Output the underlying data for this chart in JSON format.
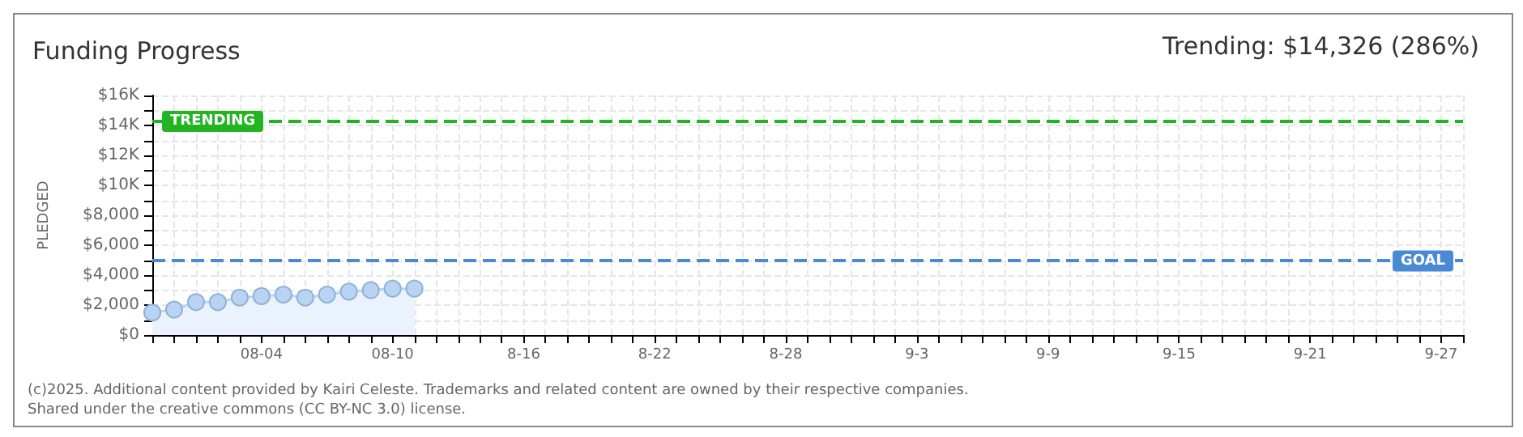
{
  "chart_data": {
    "type": "area",
    "title": "Funding Progress",
    "subtitle": "Trending: $14,326 (286%)",
    "ylabel": "PLEDGED",
    "categories": [
      null,
      null,
      null,
      null,
      null,
      "08-04",
      null,
      null,
      null,
      null,
      null,
      "08-10",
      null,
      null,
      null,
      null,
      null,
      "8-16",
      null,
      null,
      null,
      null,
      null,
      "8-22",
      null,
      null,
      null,
      null,
      null,
      "8-28",
      null,
      null,
      null,
      null,
      null,
      "9-3",
      null,
      null,
      null,
      null,
      null,
      "9-9",
      null,
      null,
      null,
      null,
      null,
      "9-15",
      null,
      null,
      null,
      null,
      null,
      "9-21",
      null,
      null,
      null,
      null,
      null,
      "9-27",
      null
    ],
    "series": [
      {
        "color": "#b8d4f2",
        "values": [
          1500,
          1700,
          2200,
          2200,
          2500,
          2600,
          2700,
          2500,
          2700,
          2900,
          3000,
          3100,
          3100,
          null,
          null,
          null,
          null,
          null,
          null,
          null,
          null,
          null,
          null,
          null,
          null,
          null,
          null,
          null,
          null,
          null,
          null,
          null,
          null,
          null,
          null,
          null,
          null,
          null,
          null,
          null,
          null,
          null,
          null,
          null,
          null,
          null,
          null,
          null,
          null,
          null,
          null,
          null,
          null,
          null,
          null,
          null,
          null,
          null,
          null,
          null,
          null
        ]
      }
    ],
    "ylim": [
      0,
      16000
    ],
    "yticks": [
      {
        "value": 0,
        "label": "$0"
      },
      {
        "value": 1000,
        "label": null
      },
      {
        "value": 2000,
        "label": "$2,000"
      },
      {
        "value": 3000,
        "label": null
      },
      {
        "value": 4000,
        "label": "$4,000"
      },
      {
        "value": 5000,
        "label": null
      },
      {
        "value": 6000,
        "label": "$6,000"
      },
      {
        "value": 7000,
        "label": null
      },
      {
        "value": 8000,
        "label": "$8,000"
      },
      {
        "value": 9000,
        "label": null
      },
      {
        "value": 10000,
        "label": "$10K"
      },
      {
        "value": 11000,
        "label": null
      },
      {
        "value": 12000,
        "label": "$12K"
      },
      {
        "value": 13000,
        "label": null
      },
      {
        "value": 14000,
        "label": "$14K"
      },
      {
        "value": 15000,
        "label": null
      },
      {
        "value": 16000,
        "label": "$16K"
      }
    ],
    "ref_lines": [
      {
        "axis": "y",
        "value": 14326,
        "label": "TRENDING",
        "color": "#22b422",
        "line_style": "dashed"
      },
      {
        "axis": "y",
        "value": 5000,
        "label": "GOAL",
        "color": "#4a8ad4",
        "line_style": "dashed"
      }
    ],
    "annotations": [
      "(c)2025. Additional content provided by Kairi Celeste. Trademarks and related content are owned by their respective companies.",
      "Shared under the creative commons (CC BY-NC 3.0) license."
    ],
    "grid": true,
    "marker": "circle",
    "line_style": "solid"
  }
}
